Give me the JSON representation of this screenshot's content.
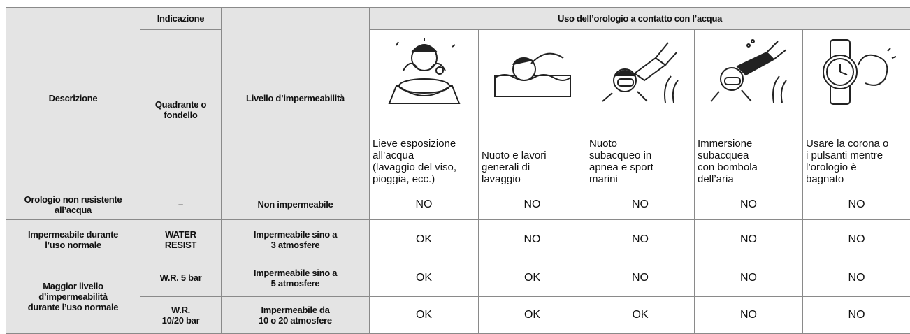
{
  "table": {
    "header": {
      "description": "Descrizione",
      "indication": "Indicazione",
      "indication_sub": [
        "Quadrante o",
        "fondello"
      ],
      "level": "Livello d’impermeabilità",
      "usage": "Uso dell’orologio a contatto con l’acqua",
      "activities": [
        [
          "Lieve esposizione",
          "all’acqua",
          "(lavaggio del viso,",
          "pioggia, ecc.)"
        ],
        [
          "Nuoto e lavori",
          "generali di",
          "lavaggio"
        ],
        [
          "Nuoto",
          "subacqueo in",
          "apnea e sport",
          "marini"
        ],
        [
          "Immersione",
          "subacquea",
          "con bombola",
          "dell’aria"
        ],
        [
          "Usare la corona o",
          "i pulsanti mentre",
          "l’orologio è",
          "bagnato"
        ]
      ]
    },
    "rows": [
      {
        "description": [
          "Orologio non resistente",
          "all’acqua"
        ],
        "indication": [
          "–"
        ],
        "level": [
          "Non impermeabile"
        ],
        "results": [
          "NO",
          "NO",
          "NO",
          "NO",
          "NO"
        ]
      },
      {
        "description": [
          "Impermeabile durante",
          "l’uso normale"
        ],
        "indication": [
          "WATER",
          "RESIST"
        ],
        "level": [
          "Impermeabile sino a",
          "3 atmosfere"
        ],
        "results": [
          "OK",
          "NO",
          "NO",
          "NO",
          "NO"
        ]
      },
      {
        "description": [
          "Maggior livello",
          "d’impermeabilità",
          "durante l’uso normale"
        ],
        "indication": [
          "W.R. 5 bar"
        ],
        "level": [
          "Impermeabile sino a",
          "5 atmosfere"
        ],
        "results": [
          "OK",
          "OK",
          "NO",
          "NO",
          "NO"
        ]
      },
      {
        "indication": [
          "W.R.",
          "10/20 bar"
        ],
        "level": [
          "Impermeabile da",
          "10 o 20 atmosfere"
        ],
        "results": [
          "OK",
          "OK",
          "OK",
          "NO",
          "NO"
        ]
      }
    ]
  }
}
